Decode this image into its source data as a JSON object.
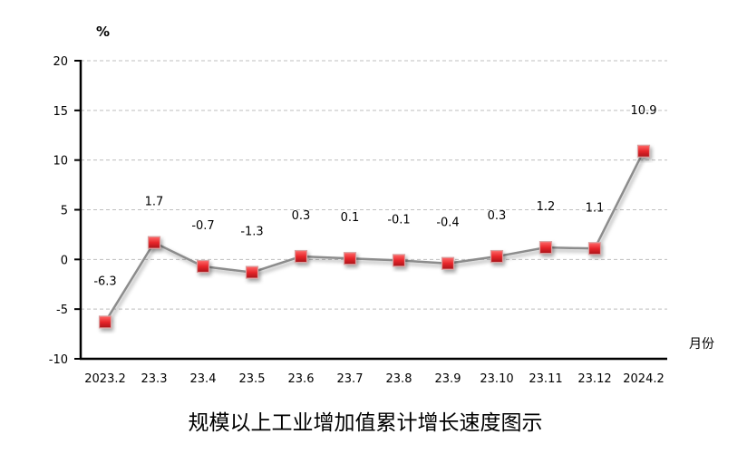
{
  "chart_data": {
    "type": "line",
    "title": "规模以上工业增加值累计增长速度图示",
    "ylabel": "%",
    "xlabel": "月份",
    "categories": [
      "2023.2",
      "23.3",
      "23.4",
      "23.5",
      "23.6",
      "23.7",
      "23.8",
      "23.9",
      "23.10",
      "23.11",
      "23.12",
      "2024.2"
    ],
    "values": [
      -6.3,
      1.7,
      -0.7,
      -1.3,
      0.3,
      0.1,
      -0.1,
      -0.4,
      0.3,
      1.2,
      1.1,
      10.9
    ],
    "data_labels": [
      "-6.3",
      "1.7",
      "-0.7",
      "-1.3",
      "0.3",
      "0.1",
      "-0.1",
      "-0.4",
      "0.3",
      "1.2",
      "1.1",
      "10.9"
    ],
    "ylim": [
      -10,
      20
    ],
    "yticks": [
      "20",
      "15",
      "10",
      "5",
      "0",
      "-5",
      "-10"
    ],
    "grid": true,
    "legend": "none",
    "colors": {
      "line": "#8c8c8c",
      "marker": "#e8262b",
      "grid": "#bfbfbf"
    }
  }
}
